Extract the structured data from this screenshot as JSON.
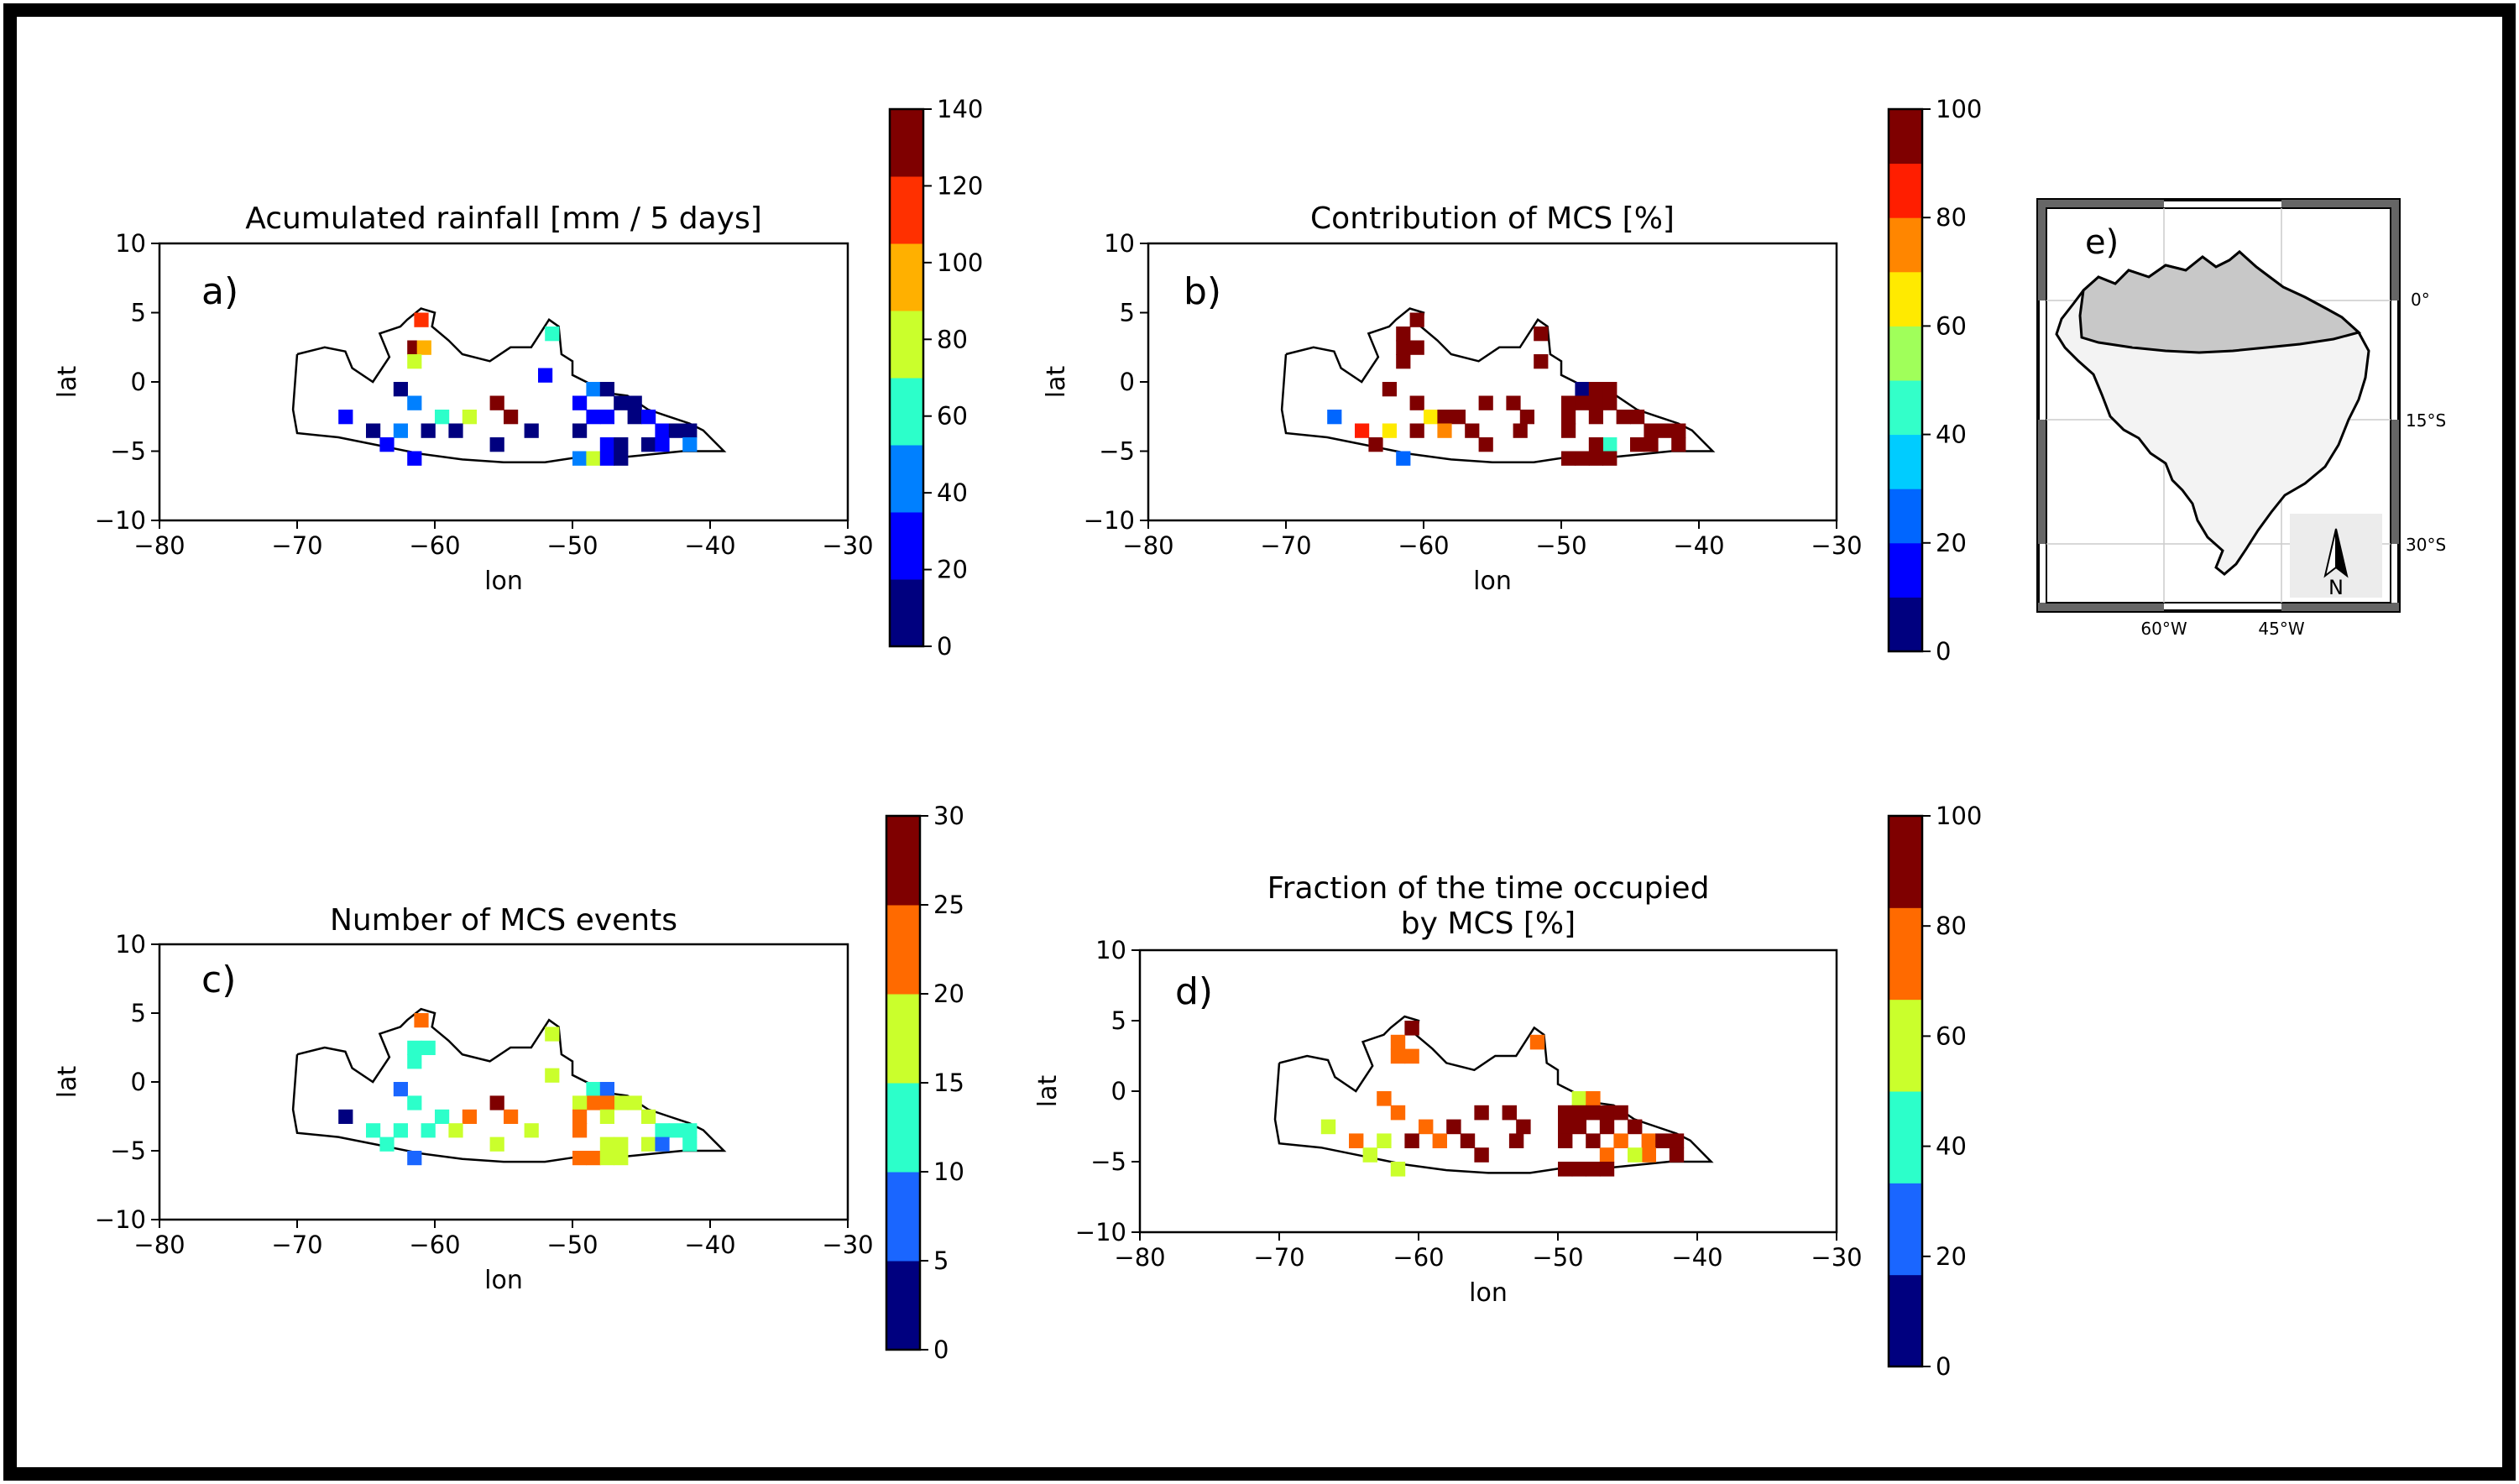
{
  "chart_data": [
    {
      "panel": "a)",
      "type": "heatmap",
      "title": "Acumulated rainfall [mm / 5 days]",
      "title2": "",
      "xlabel": "lon",
      "ylabel": "lat",
      "xlim": [
        -80,
        -30
      ],
      "ylim": [
        -10,
        10
      ],
      "xticks": [
        -80,
        -70,
        -60,
        -50,
        -40,
        -30
      ],
      "yticks": [
        -10,
        -5,
        0,
        5,
        10
      ],
      "colorbar": {
        "ticks": [
          0,
          20,
          40,
          60,
          80,
          100,
          120,
          140
        ],
        "range": [
          0,
          140
        ],
        "colors": [
          "#00007f",
          "#0000ff",
          "#0080ff",
          "#2cffca",
          "#caff2c",
          "#ffb000",
          "#ff3000",
          "#7f0000"
        ]
      },
      "points": [
        [
          -61,
          4.5,
          120
        ],
        [
          -61.5,
          2.5,
          130
        ],
        [
          -60.8,
          2.5,
          95
        ],
        [
          -61.5,
          1.5,
          85
        ],
        [
          -51.5,
          3.5,
          65
        ],
        [
          -52,
          0.5,
          25
        ],
        [
          -62.5,
          -0.5,
          15
        ],
        [
          -61.5,
          -1.5,
          45
        ],
        [
          -59.5,
          -2.5,
          55
        ],
        [
          -57.5,
          -2.5,
          85
        ],
        [
          -55.5,
          -1.5,
          130
        ],
        [
          -54.5,
          -2.5,
          130
        ],
        [
          -66.5,
          -2.5,
          30
        ],
        [
          -64.5,
          -3.5,
          10
        ],
        [
          -63.5,
          -4.5,
          30
        ],
        [
          -62.5,
          -3.5,
          45
        ],
        [
          -60.5,
          -3.5,
          10
        ],
        [
          -58.5,
          -3.5,
          10
        ],
        [
          -55.5,
          -4.5,
          15
        ],
        [
          -53,
          -3.5,
          15
        ],
        [
          -61.5,
          -5.5,
          20
        ],
        [
          -48.5,
          -0.5,
          45
        ],
        [
          -47.5,
          -0.5,
          10
        ],
        [
          -46.5,
          -1.5,
          15
        ],
        [
          -45.5,
          -1.5,
          10
        ],
        [
          -49.5,
          -1.5,
          30
        ],
        [
          -48.5,
          -2.5,
          30
        ],
        [
          -47.5,
          -2.5,
          30
        ],
        [
          -45.5,
          -2.5,
          15
        ],
        [
          -44.5,
          -2.5,
          25
        ],
        [
          -43.5,
          -3.5,
          20
        ],
        [
          -42.5,
          -3.5,
          15
        ],
        [
          -41.5,
          -3.5,
          10
        ],
        [
          -41.5,
          -4.5,
          40
        ],
        [
          -49.5,
          -3.5,
          10
        ],
        [
          -47.5,
          -4.5,
          25
        ],
        [
          -46.5,
          -4.5,
          15
        ],
        [
          -44.5,
          -4.5,
          10
        ],
        [
          -43.5,
          -4.5,
          20
        ],
        [
          -49.5,
          -5.5,
          50
        ],
        [
          -48.5,
          -5.5,
          70
        ],
        [
          -47.5,
          -5.5,
          30
        ],
        [
          -46.5,
          -5.5,
          10
        ]
      ]
    },
    {
      "panel": "b)",
      "type": "heatmap",
      "title": "Contribution of MCS [%]",
      "title2": "",
      "xlabel": "lon",
      "ylabel": "lat",
      "xlim": [
        -80,
        -30
      ],
      "ylim": [
        -10,
        10
      ],
      "xticks": [
        -80,
        -70,
        -60,
        -50,
        -40,
        -30
      ],
      "yticks": [
        -10,
        -5,
        0,
        5,
        10
      ],
      "colorbar": {
        "ticks": [
          0,
          20,
          40,
          60,
          80,
          100
        ],
        "range": [
          0,
          100
        ],
        "colors": [
          "#00007f",
          "#0000ff",
          "#0066ff",
          "#00ccff",
          "#33ffc9",
          "#a0ff5a",
          "#ffea00",
          "#ff8600",
          "#ff1e00",
          "#7f0000"
        ]
      },
      "points": [
        [
          -60.5,
          4.5,
          100
        ],
        [
          -61.5,
          3.5,
          100
        ],
        [
          -61.5,
          2.5,
          100
        ],
        [
          -60.5,
          2.5,
          100
        ],
        [
          -61.5,
          1.5,
          100
        ],
        [
          -51.5,
          3.5,
          100
        ],
        [
          -51.5,
          1.5,
          100
        ],
        [
          -62.5,
          -0.5,
          100
        ],
        [
          -60.5,
          -1.5,
          100
        ],
        [
          -59.5,
          -2.5,
          65
        ],
        [
          -58.5,
          -2.5,
          100
        ],
        [
          -57.5,
          -2.5,
          100
        ],
        [
          -55.5,
          -1.5,
          100
        ],
        [
          -53.5,
          -1.5,
          100
        ],
        [
          -52.5,
          -2.5,
          100
        ],
        [
          -66.5,
          -2.5,
          25
        ],
        [
          -64.5,
          -3.5,
          85
        ],
        [
          -63.5,
          -4.5,
          95
        ],
        [
          -62.5,
          -3.5,
          65
        ],
        [
          -60.5,
          -3.5,
          100
        ],
        [
          -58.5,
          -3.5,
          75
        ],
        [
          -56.5,
          -3.5,
          100
        ],
        [
          -55.5,
          -4.5,
          100
        ],
        [
          -53,
          -3.5,
          100
        ],
        [
          -61.5,
          -5.5,
          20
        ],
        [
          -48.5,
          -0.5,
          5
        ],
        [
          -47.5,
          -0.5,
          100
        ],
        [
          -46.5,
          -0.5,
          100
        ],
        [
          -49.5,
          -1.5,
          100
        ],
        [
          -48.5,
          -1.5,
          100
        ],
        [
          -47.5,
          -1.5,
          100
        ],
        [
          -46.5,
          -1.5,
          100
        ],
        [
          -49.5,
          -2.5,
          100
        ],
        [
          -47.5,
          -2.5,
          100
        ],
        [
          -45.5,
          -2.5,
          100
        ],
        [
          -44.5,
          -2.5,
          100
        ],
        [
          -49.5,
          -3.5,
          100
        ],
        [
          -46.5,
          -4.5,
          45
        ],
        [
          -47.5,
          -4.5,
          100
        ],
        [
          -43.5,
          -3.5,
          100
        ],
        [
          -42.5,
          -3.5,
          100
        ],
        [
          -41.5,
          -3.5,
          100
        ],
        [
          -41.5,
          -4.5,
          100
        ],
        [
          -43.5,
          -4.5,
          100
        ],
        [
          -44.5,
          -4.5,
          100
        ],
        [
          -49.5,
          -5.5,
          100
        ],
        [
          -48.5,
          -5.5,
          100
        ],
        [
          -47.5,
          -5.5,
          100
        ],
        [
          -46.5,
          -5.5,
          100
        ]
      ]
    },
    {
      "panel": "c)",
      "type": "heatmap",
      "title": "Number of MCS events",
      "title2": "",
      "xlabel": "lon",
      "ylabel": "lat",
      "xlim": [
        -80,
        -30
      ],
      "ylim": [
        -10,
        10
      ],
      "xticks": [
        -80,
        -70,
        -60,
        -50,
        -40,
        -30
      ],
      "yticks": [
        -10,
        -5,
        0,
        5,
        10
      ],
      "colorbar": {
        "ticks": [
          0,
          5,
          10,
          15,
          20,
          25,
          30
        ],
        "range": [
          0,
          30
        ],
        "colors": [
          "#00007f",
          "#1a66ff",
          "#2cffca",
          "#caff2c",
          "#ff6a00",
          "#7f0000"
        ]
      },
      "points": [
        [
          -61,
          4.5,
          22
        ],
        [
          -61.5,
          2.5,
          12
        ],
        [
          -60.5,
          2.5,
          12
        ],
        [
          -61.5,
          1.5,
          12
        ],
        [
          -51.5,
          3.5,
          17
        ],
        [
          -51.5,
          0.5,
          17
        ],
        [
          -62.5,
          -0.5,
          7
        ],
        [
          -61.5,
          -1.5,
          12
        ],
        [
          -59.5,
          -2.5,
          12
        ],
        [
          -57.5,
          -2.5,
          22
        ],
        [
          -55.5,
          -1.5,
          27
        ],
        [
          -54.5,
          -2.5,
          22
        ],
        [
          -66.5,
          -2.5,
          2
        ],
        [
          -64.5,
          -3.5,
          12
        ],
        [
          -63.5,
          -4.5,
          12
        ],
        [
          -62.5,
          -3.5,
          12
        ],
        [
          -60.5,
          -3.5,
          12
        ],
        [
          -58.5,
          -3.5,
          17
        ],
        [
          -55.5,
          -4.5,
          17
        ],
        [
          -53,
          -3.5,
          17
        ],
        [
          -61.5,
          -5.5,
          7
        ],
        [
          -48.5,
          -0.5,
          12
        ],
        [
          -47.5,
          -0.5,
          7
        ],
        [
          -46.5,
          -1.5,
          17
        ],
        [
          -45.5,
          -1.5,
          17
        ],
        [
          -48.5,
          -1.5,
          22
        ],
        [
          -47.5,
          -1.5,
          22
        ],
        [
          -49.5,
          -1.5,
          17
        ],
        [
          -49.5,
          -2.5,
          22
        ],
        [
          -47.5,
          -2.5,
          17
        ],
        [
          -44.5,
          -2.5,
          17
        ],
        [
          -43.5,
          -3.5,
          12
        ],
        [
          -42.5,
          -3.5,
          12
        ],
        [
          -41.5,
          -3.5,
          12
        ],
        [
          -41.5,
          -4.5,
          12
        ],
        [
          -49.5,
          -3.5,
          22
        ],
        [
          -47.5,
          -4.5,
          17
        ],
        [
          -46.5,
          -4.5,
          17
        ],
        [
          -44.5,
          -4.5,
          17
        ],
        [
          -43.5,
          -4.5,
          7
        ],
        [
          -49.5,
          -5.5,
          22
        ],
        [
          -48.5,
          -5.5,
          22
        ],
        [
          -47.5,
          -5.5,
          17
        ],
        [
          -46.5,
          -5.5,
          17
        ]
      ]
    },
    {
      "panel": "d)",
      "type": "heatmap",
      "title": "Fraction of the time occupied",
      "title2": "by MCS [%]",
      "xlabel": "lon",
      "ylabel": "lat",
      "xlim": [
        -80,
        -30
      ],
      "ylim": [
        -10,
        10
      ],
      "xticks": [
        -80,
        -70,
        -60,
        -50,
        -40,
        -30
      ],
      "yticks": [
        -10,
        -5,
        0,
        5,
        10
      ],
      "colorbar": {
        "ticks": [
          0,
          20,
          40,
          60,
          80,
          100
        ],
        "range": [
          0,
          100
        ],
        "colors": [
          "#00007f",
          "#1a66ff",
          "#2cffca",
          "#caff2c",
          "#ff6a00",
          "#7f0000"
        ]
      },
      "points": [
        [
          -60.5,
          4.5,
          90
        ],
        [
          -61.5,
          3.5,
          70
        ],
        [
          -61.5,
          2.5,
          70
        ],
        [
          -60.5,
          2.5,
          70
        ],
        [
          -51.5,
          3.5,
          70
        ],
        [
          -62.5,
          -0.5,
          70
        ],
        [
          -61.5,
          -1.5,
          70
        ],
        [
          -59.5,
          -2.5,
          70
        ],
        [
          -57.5,
          -2.5,
          90
        ],
        [
          -55.5,
          -1.5,
          90
        ],
        [
          -53.5,
          -1.5,
          90
        ],
        [
          -52.5,
          -2.5,
          90
        ],
        [
          -66.5,
          -2.5,
          50
        ],
        [
          -64.5,
          -3.5,
          70
        ],
        [
          -63.5,
          -4.5,
          60
        ],
        [
          -62.5,
          -3.5,
          50
        ],
        [
          -60.5,
          -3.5,
          90
        ],
        [
          -58.5,
          -3.5,
          70
        ],
        [
          -56.5,
          -3.5,
          90
        ],
        [
          -55.5,
          -4.5,
          90
        ],
        [
          -53,
          -3.5,
          90
        ],
        [
          -61.5,
          -5.5,
          50
        ],
        [
          -48.5,
          -0.5,
          60
        ],
        [
          -47.5,
          -0.5,
          70
        ],
        [
          -48.5,
          -1.5,
          90
        ],
        [
          -47.5,
          -1.5,
          90
        ],
        [
          -46.5,
          -1.5,
          90
        ],
        [
          -49.5,
          -1.5,
          90
        ],
        [
          -45.5,
          -1.5,
          90
        ],
        [
          -49.5,
          -2.5,
          90
        ],
        [
          -48.5,
          -2.5,
          90
        ],
        [
          -46.5,
          -2.5,
          90
        ],
        [
          -44.5,
          -2.5,
          90
        ],
        [
          -49.5,
          -3.5,
          90
        ],
        [
          -47.5,
          -3.5,
          90
        ],
        [
          -45.5,
          -3.5,
          70
        ],
        [
          -43.5,
          -3.5,
          70
        ],
        [
          -42.5,
          -3.5,
          90
        ],
        [
          -41.5,
          -3.5,
          90
        ],
        [
          -41.5,
          -4.5,
          90
        ],
        [
          -43.5,
          -4.5,
          70
        ],
        [
          -44.5,
          -4.5,
          60
        ],
        [
          -46.5,
          -4.5,
          70
        ],
        [
          -49.5,
          -5.5,
          90
        ],
        [
          -48.5,
          -5.5,
          90
        ],
        [
          -47.5,
          -5.5,
          90
        ],
        [
          -46.5,
          -5.5,
          90
        ]
      ]
    }
  ],
  "inset_map": {
    "label": "e)",
    "lat_labels": [
      "0°",
      "15°S",
      "30°S"
    ],
    "lon_labels": [
      "60°W",
      "45°W"
    ],
    "north_label": "N"
  }
}
